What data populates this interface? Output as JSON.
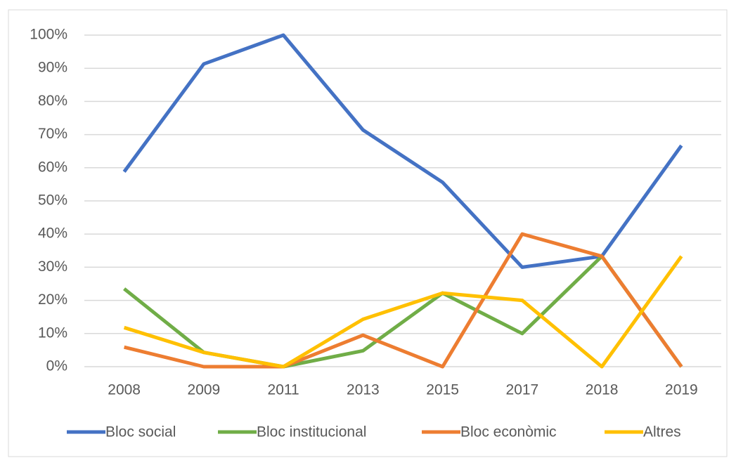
{
  "chart_data": {
    "type": "line",
    "categories": [
      "2008",
      "2009",
      "2011",
      "2013",
      "2015",
      "2017",
      "2018",
      "2019"
    ],
    "series": [
      {
        "name": "Bloc social",
        "color": "#4472c4",
        "values": [
          58.8,
          91.3,
          100,
          71.4,
          55.6,
          30,
          33.3,
          66.7
        ]
      },
      {
        "name": "Bloc institucional",
        "color": "#70ad47",
        "values": [
          23.5,
          4.3,
          0,
          4.8,
          22.2,
          10,
          33.3,
          0
        ]
      },
      {
        "name": "Bloc econòmic",
        "color": "#ed7d31",
        "values": [
          5.9,
          0,
          0,
          9.5,
          0,
          40,
          33.3,
          0
        ]
      },
      {
        "name": "Altres",
        "color": "#ffc000",
        "values": [
          11.8,
          4.3,
          0,
          14.3,
          22.2,
          20,
          0,
          33.3
        ]
      }
    ],
    "ylim": [
      0,
      100
    ],
    "yticks": [
      {
        "value": 0,
        "label": "0%"
      },
      {
        "value": 10,
        "label": "10%"
      },
      {
        "value": 20,
        "label": "20%"
      },
      {
        "value": 30,
        "label": "30%"
      },
      {
        "value": 40,
        "label": "40%"
      },
      {
        "value": 50,
        "label": "50%"
      },
      {
        "value": 60,
        "label": "60%"
      },
      {
        "value": 70,
        "label": "70%"
      },
      {
        "value": 80,
        "label": "80%"
      },
      {
        "value": 90,
        "label": "90%"
      },
      {
        "value": 100,
        "label": "100%"
      }
    ],
    "grid": true,
    "legend": "bottom"
  }
}
